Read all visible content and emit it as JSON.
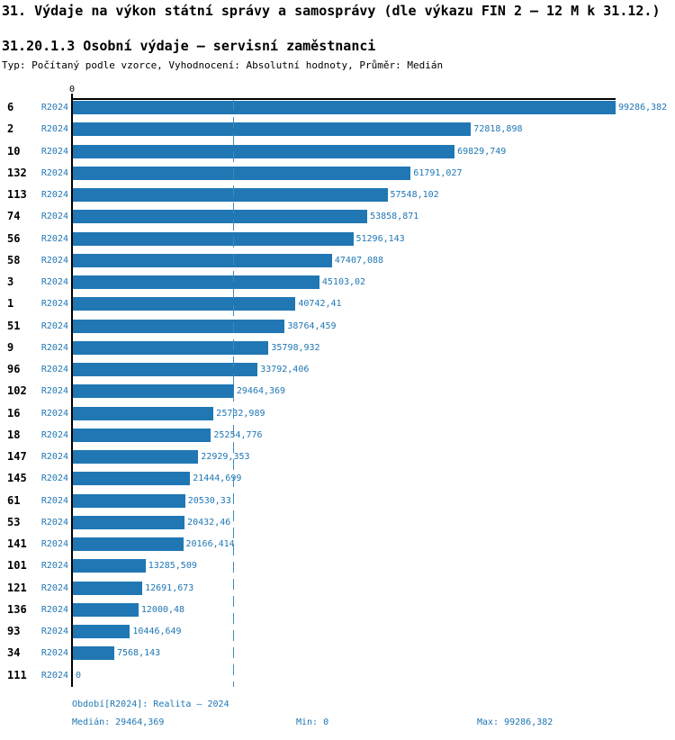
{
  "header": {
    "title": "31. Výdaje na výkon státní správy a samosprávy (dle výkazu FIN 2 – 12 M k 31.12.)",
    "subtitle": "31.20.1.3 Osobní výdaje – servisní zaměstnanci",
    "meta": "Typ: Počítaný podle vzorce, Vyhodnocení: Absolutní hodnoty, Průměr: Medián"
  },
  "chart_data": {
    "type": "bar",
    "orientation": "horizontal",
    "title": "31.20.1.3 Osobní výdaje – servisní zaměstnanci",
    "axis_zero_label": "0",
    "series_label": "R2024",
    "categories": [
      "6",
      "2",
      "10",
      "132",
      "113",
      "74",
      "56",
      "58",
      "3",
      "1",
      "51",
      "9",
      "96",
      "102",
      "16",
      "18",
      "147",
      "145",
      "61",
      "53",
      "141",
      "101",
      "121",
      "136",
      "93",
      "34",
      "111"
    ],
    "values": [
      99286.382,
      72818.898,
      69829.749,
      61791.027,
      57548.102,
      53858.871,
      51296.143,
      47407.088,
      45103.02,
      40742.41,
      38764.459,
      35798.932,
      33792.406,
      29464.369,
      25732.989,
      25254.776,
      22929.353,
      21444.699,
      20530.33,
      20432.46,
      20166.414,
      13285.509,
      12691.673,
      12000.48,
      10446.649,
      7568.143,
      0
    ],
    "value_labels": [
      "99286,382",
      "72818,898",
      "69829,749",
      "61791,027",
      "57548,102",
      "53858,871",
      "51296,143",
      "47407,088",
      "45103,02",
      "40742,41",
      "38764,459",
      "35798,932",
      "33792,406",
      "29464,369",
      "25732,989",
      "25254,776",
      "22929,353",
      "21444,699",
      "20530,33",
      "20432,46",
      "20166,414",
      "13285,509",
      "12691,673",
      "12000,48",
      "10446,649",
      "7568,143",
      "0"
    ],
    "xlim": [
      0,
      99286.382
    ],
    "median_value": 29464.369,
    "grid": false,
    "legend": false,
    "bar_color": "#2077b4",
    "text_blue": "#2077b4",
    "median_line_color": "#3d8bbf"
  },
  "footer": {
    "period": "Období[R2024]: Realita – 2024",
    "median": "Medián: 29464,369",
    "min": "Min: 0",
    "max": "Max: 99286,382"
  }
}
